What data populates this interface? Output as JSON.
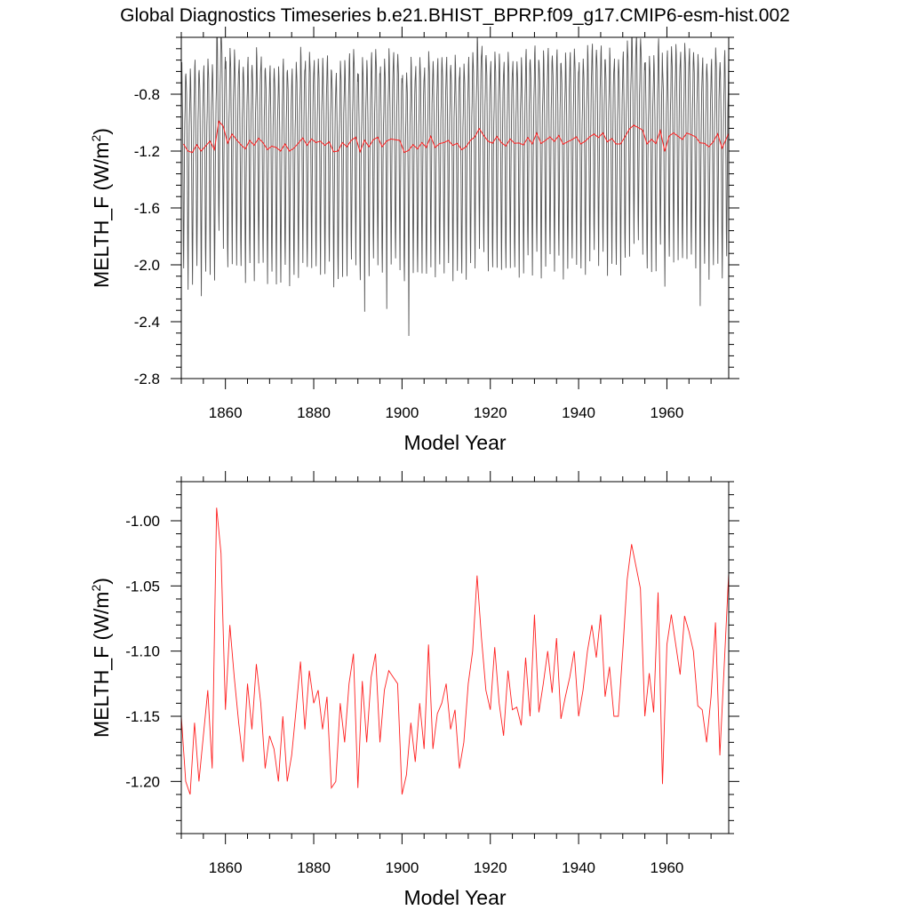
{
  "title": "Global Diagnostics Timeseries b.e21.BHIST_BPRP.f09_g17.CMIP6-esm-hist.002",
  "chart_data": [
    {
      "type": "line",
      "xlabel": "Model Year",
      "ylabel_prefix": "MELTH_F (W/m",
      "ylabel_sup": "2",
      "ylabel_suffix": ")",
      "xlim": [
        1850,
        1974
      ],
      "ylim": [
        -2.8,
        -0.4
      ],
      "xticks": [
        1860,
        1880,
        1900,
        1920,
        1940,
        1960
      ],
      "xtick_labels": [
        "1860",
        "1880",
        "1900",
        "1920",
        "1940",
        "1960"
      ],
      "yticks": [
        -2.8,
        -2.4,
        -2.0,
        -1.6,
        -1.2,
        -0.8
      ],
      "ytick_labels": [
        "-2.8",
        "-2.4",
        "-2.0",
        "-1.6",
        "-1.2",
        "-0.8"
      ],
      "monthly_pattern": [
        -0.58,
        -0.6,
        -0.75,
        -1.0,
        -1.35,
        -1.8,
        -2.05,
        -1.65,
        -1.3,
        -1.0,
        -0.85,
        -0.7
      ],
      "monthly_extremes": [
        {
          "x": 1891,
          "y": -2.33
        },
        {
          "x": 1896,
          "y": -2.31
        },
        {
          "x": 1901,
          "y": -2.5
        },
        {
          "x": 1854,
          "y": -2.22
        },
        {
          "x": 1967,
          "y": -2.29
        }
      ],
      "series": [
        {
          "color": "#555555",
          "kind": "monthly"
        },
        {
          "color": "#ff2020",
          "kind": "annual"
        }
      ]
    },
    {
      "type": "line",
      "xlabel": "Model Year",
      "ylabel_prefix": "MELTH_F (W/m",
      "ylabel_sup": "2",
      "ylabel_suffix": ")",
      "xlim": [
        1850,
        1974
      ],
      "ylim": [
        -1.24,
        -0.97
      ],
      "xticks": [
        1860,
        1880,
        1900,
        1920,
        1940,
        1960
      ],
      "xtick_labels": [
        "1860",
        "1880",
        "1900",
        "1920",
        "1940",
        "1960"
      ],
      "yticks": [
        -1.2,
        -1.15,
        -1.1,
        -1.05,
        -1.0
      ],
      "ytick_labels": [
        "-1.20",
        "-1.15",
        "-1.10",
        "-1.05",
        "-1.00"
      ],
      "x": [
        1850,
        1851,
        1852,
        1853,
        1854,
        1855,
        1856,
        1857,
        1858,
        1859,
        1860,
        1861,
        1862,
        1863,
        1864,
        1865,
        1866,
        1867,
        1868,
        1869,
        1870,
        1871,
        1872,
        1873,
        1874,
        1875,
        1876,
        1877,
        1878,
        1879,
        1880,
        1881,
        1882,
        1883,
        1884,
        1885,
        1886,
        1887,
        1888,
        1889,
        1890,
        1891,
        1892,
        1893,
        1894,
        1895,
        1896,
        1897,
        1898,
        1899,
        1900,
        1901,
        1902,
        1903,
        1904,
        1905,
        1906,
        1907,
        1908,
        1909,
        1910,
        1911,
        1912,
        1913,
        1914,
        1915,
        1916,
        1917,
        1918,
        1919,
        1920,
        1921,
        1922,
        1923,
        1924,
        1925,
        1926,
        1927,
        1928,
        1929,
        1930,
        1931,
        1932,
        1933,
        1934,
        1935,
        1936,
        1937,
        1938,
        1939,
        1940,
        1941,
        1942,
        1943,
        1944,
        1945,
        1946,
        1947,
        1948,
        1949,
        1950,
        1951,
        1952,
        1953,
        1954,
        1955,
        1956,
        1957,
        1958,
        1959,
        1960,
        1961,
        1962,
        1963,
        1964,
        1965,
        1966,
        1967,
        1968,
        1969,
        1970,
        1971,
        1972,
        1973,
        1974
      ],
      "series": [
        {
          "color": "#ff2020",
          "values": [
            -1.15,
            -1.2,
            -1.21,
            -1.155,
            -1.2,
            -1.165,
            -1.13,
            -1.19,
            -0.99,
            -1.025,
            -1.145,
            -1.08,
            -1.12,
            -1.155,
            -1.185,
            -1.125,
            -1.16,
            -1.11,
            -1.14,
            -1.19,
            -1.165,
            -1.175,
            -1.2,
            -1.15,
            -1.2,
            -1.18,
            -1.145,
            -1.108,
            -1.16,
            -1.115,
            -1.14,
            -1.13,
            -1.16,
            -1.135,
            -1.205,
            -1.2,
            -1.14,
            -1.17,
            -1.125,
            -1.102,
            -1.205,
            -1.123,
            -1.17,
            -1.12,
            -1.102,
            -1.17,
            -1.13,
            -1.115,
            -1.12,
            -1.125,
            -1.21,
            -1.195,
            -1.155,
            -1.185,
            -1.14,
            -1.175,
            -1.095,
            -1.175,
            -1.148,
            -1.14,
            -1.125,
            -1.16,
            -1.145,
            -1.19,
            -1.17,
            -1.125,
            -1.1,
            -1.042,
            -1.09,
            -1.13,
            -1.145,
            -1.097,
            -1.14,
            -1.165,
            -1.115,
            -1.145,
            -1.143,
            -1.157,
            -1.105,
            -1.15,
            -1.072,
            -1.147,
            -1.125,
            -1.1,
            -1.132,
            -1.09,
            -1.152,
            -1.135,
            -1.12,
            -1.1,
            -1.15,
            -1.13,
            -1.1,
            -1.08,
            -1.105,
            -1.072,
            -1.135,
            -1.112,
            -1.15,
            -1.15,
            -1.1,
            -1.045,
            -1.018,
            -1.035,
            -1.052,
            -1.15,
            -1.117,
            -1.147,
            -1.055,
            -1.202,
            -1.095,
            -1.072,
            -1.095,
            -1.118,
            -1.073,
            -1.085,
            -1.1,
            -1.142,
            -1.145,
            -1.17,
            -1.135,
            -1.078,
            -1.18,
            -1.11,
            -1.04
          ]
        }
      ]
    }
  ]
}
